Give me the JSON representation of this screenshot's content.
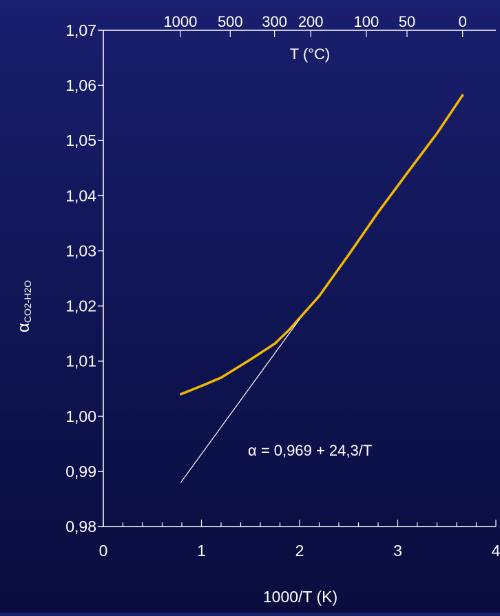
{
  "chart_data": {
    "type": "line",
    "title": "",
    "xlabel": "1000/T (K)",
    "ylabel_main": "α",
    "ylabel_sub": "CO2-H2O",
    "top_axis_label": "T (°C)",
    "xlim": [
      0,
      4
    ],
    "ylim": [
      0.98,
      1.07
    ],
    "x_ticks": [
      0,
      1,
      2,
      3,
      4
    ],
    "x_tick_labels": [
      "0",
      "1",
      "2",
      "3",
      "4"
    ],
    "y_ticks": [
      0.98,
      0.99,
      1.0,
      1.01,
      1.02,
      1.03,
      1.04,
      1.05,
      1.06,
      1.07
    ],
    "y_tick_labels": [
      "0,98",
      "0,99",
      "1,00",
      "1,01",
      "1,02",
      "1,03",
      "1,04",
      "1,05",
      "1,06",
      "1,07"
    ],
    "top_ticks_celsius": [
      1000,
      500,
      300,
      200,
      100,
      50,
      0
    ],
    "top_tick_labels": [
      "1000",
      "500",
      "300",
      "200",
      "100",
      "50",
      "0"
    ],
    "grid": false,
    "series": [
      {
        "color": "#f5b800",
        "x": [
          0.79,
          1.0,
          1.2,
          1.5,
          1.75,
          1.9,
          2.0,
          2.2,
          2.5,
          2.8,
          3.1,
          3.4,
          3.66
        ],
        "y": [
          1.004,
          1.0055,
          1.007,
          1.0103,
          1.0132,
          1.0158,
          1.0178,
          1.0218,
          1.0293,
          1.037,
          1.0442,
          1.0513,
          1.0582
        ]
      },
      {
        "color": "#ffffff",
        "x": [
          0.79,
          2.0
        ],
        "y": [
          0.988,
          1.0176
        ]
      }
    ],
    "annotations": [
      {
        "text": "α = 0,969 + 24,3/T"
      }
    ]
  }
}
